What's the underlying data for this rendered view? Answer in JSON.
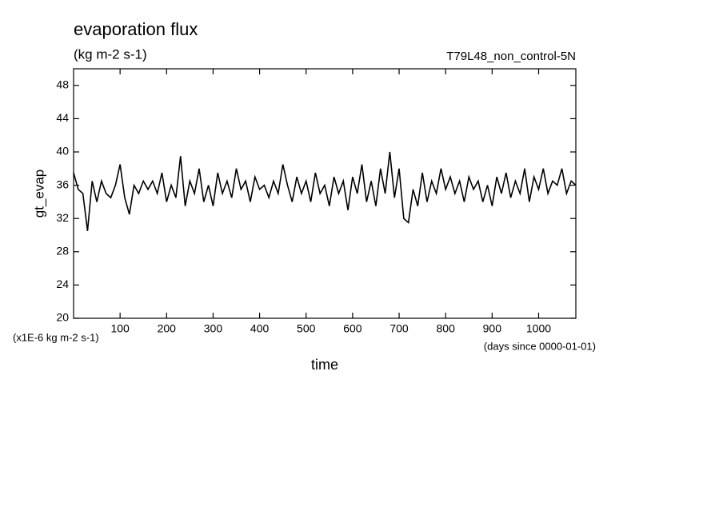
{
  "chart_data": {
    "type": "line",
    "title": "evaporation flux",
    "subtitle": "(kg m-2 s-1)",
    "annotation": "T79L48_non_control-5N",
    "y_label": "gt_evap",
    "x_label": "time",
    "y_unit_note": "(x1E-6 kg m-2 s-1)",
    "x_unit_note": "(days since 0000-01-01)",
    "xlim": [
      0,
      1080
    ],
    "ylim": [
      20,
      50
    ],
    "xticks": [
      100,
      200,
      300,
      400,
      500,
      600,
      700,
      800,
      900,
      1000
    ],
    "yticks": [
      20,
      24,
      28,
      32,
      36,
      40,
      44,
      48
    ],
    "x": [
      0,
      10,
      20,
      30,
      40,
      50,
      60,
      70,
      80,
      90,
      100,
      110,
      120,
      130,
      140,
      150,
      160,
      170,
      180,
      190,
      200,
      210,
      220,
      230,
      240,
      250,
      260,
      270,
      280,
      290,
      300,
      310,
      320,
      330,
      340,
      350,
      360,
      370,
      380,
      390,
      400,
      410,
      420,
      430,
      440,
      450,
      460,
      470,
      480,
      490,
      500,
      510,
      520,
      530,
      540,
      550,
      560,
      570,
      580,
      590,
      600,
      610,
      620,
      630,
      640,
      650,
      660,
      670,
      680,
      690,
      700,
      710,
      720,
      730,
      740,
      750,
      760,
      770,
      780,
      790,
      800,
      810,
      820,
      830,
      840,
      850,
      860,
      870,
      880,
      890,
      900,
      910,
      920,
      930,
      940,
      950,
      960,
      970,
      980,
      990,
      1000,
      1010,
      1020,
      1030,
      1040,
      1050,
      1060,
      1070,
      1080
    ],
    "series": [
      {
        "color": "#000000",
        "values": [
          37.5,
          35.5,
          35,
          30.5,
          36.5,
          34,
          36.5,
          35,
          34.5,
          36,
          38.5,
          34.5,
          32.5,
          36,
          35,
          36.5,
          35.5,
          36.5,
          35,
          37.5,
          34,
          36,
          34.5,
          39.5,
          33.5,
          36.5,
          35,
          38,
          34,
          36,
          33.5,
          37.5,
          35,
          36.5,
          34.5,
          38,
          35.5,
          36.5,
          34,
          37,
          35.5,
          36,
          34.5,
          36.5,
          35,
          38.5,
          36,
          34,
          37,
          35,
          36.5,
          34,
          37.5,
          35,
          36,
          33.5,
          37,
          35,
          36.5,
          33,
          37,
          35,
          38.5,
          34,
          36.5,
          33.5,
          38,
          35,
          40,
          34.5,
          38,
          32,
          31.5,
          35.5,
          33.5,
          37.5,
          34,
          36.5,
          35,
          38,
          35.5,
          37,
          35,
          36.5,
          34,
          37,
          35.5,
          36.5,
          34,
          36,
          33.5,
          37,
          35,
          37.5,
          34.5,
          36.5,
          35,
          38,
          34,
          37,
          35.5,
          38,
          35,
          36.5,
          36,
          38,
          35,
          36.5,
          36
        ]
      }
    ]
  }
}
